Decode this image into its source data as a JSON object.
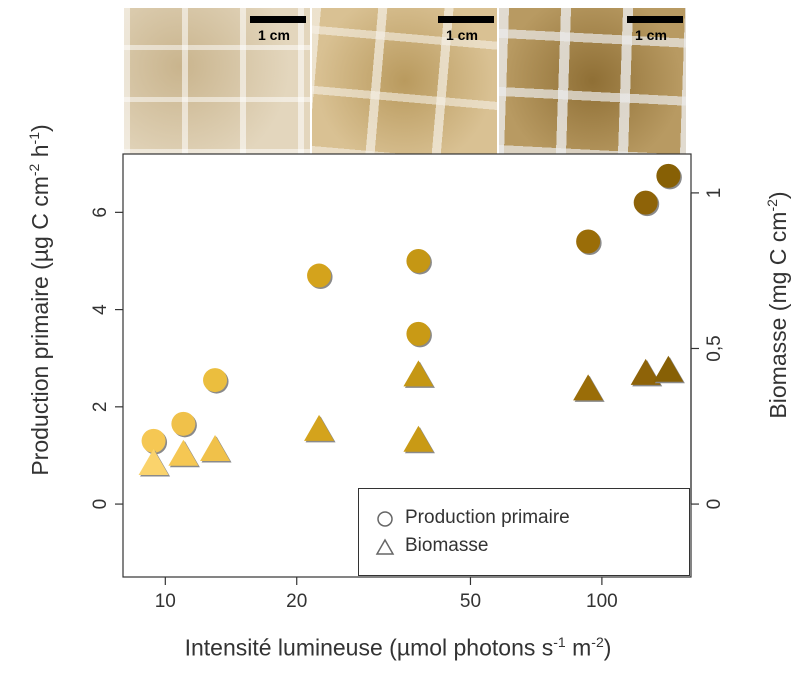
{
  "chart_data": {
    "type": "scatter",
    "xscale": "log",
    "xlabel_main": "Intensité lumineuse (µmol photons s",
    "xlabel_sup1": "-1",
    "xlabel_mid": " m",
    "xlabel_sup2": "-2",
    "xlabel_end": ")",
    "ylabel_main": "Production primaire (µg C cm",
    "ylabel_sup1": "-2",
    "ylabel_mid": " h",
    "ylabel_sup2": "-1",
    "ylabel_end": ")",
    "y2label_main": "Biomasse (mg C cm",
    "y2label_sup": "-2",
    "y2label_end": ")",
    "xticks": [
      10,
      20,
      50,
      100
    ],
    "xtick_labels": [
      "10",
      "20",
      "50",
      "100"
    ],
    "yticks": [
      0,
      2,
      4,
      6
    ],
    "ytick_labels": [
      "0",
      "2",
      "4",
      "6"
    ],
    "y2ticks": [
      0,
      0.5,
      1
    ],
    "y2tick_labels": [
      "0",
      "0,5",
      "1"
    ],
    "xlim": [
      8,
      160
    ],
    "ylim": [
      -1.5,
      7.2
    ],
    "y2lim": [
      0,
      1
    ],
    "series": [
      {
        "name": "Production primaire",
        "marker": "circle",
        "axis": "left",
        "x": [
          9.4,
          11,
          13,
          22.5,
          38,
          38,
          93,
          126,
          142
        ],
        "y": [
          1.3,
          1.65,
          2.55,
          4.7,
          3.5,
          5.0,
          5.4,
          6.2,
          6.75
        ],
        "colors": [
          "#f5c753",
          "#f0c14a",
          "#ebbe3e",
          "#d4a31c",
          "#c99a15",
          "#c59714",
          "#9a6d08",
          "#8e6308",
          "#876005"
        ]
      },
      {
        "name": "Biomasse",
        "marker": "triangle",
        "axis": "right",
        "x": [
          9.4,
          11,
          13,
          22.5,
          38,
          38,
          93,
          126,
          142
        ],
        "y": [
          0.135,
          0.165,
          0.18,
          0.245,
          0.21,
          0.42,
          0.375,
          0.425,
          0.435
        ],
        "colors": [
          "#fad36c",
          "#f5c753",
          "#f0c14a",
          "#d4a31c",
          "#c99a15",
          "#c59714",
          "#9a6d08",
          "#8e6308",
          "#876005"
        ]
      }
    ],
    "legend": {
      "position": "bottom-right",
      "entries": [
        "Production primaire",
        "Biomasse"
      ]
    },
    "grid": false
  },
  "photos": {
    "scale_labels": [
      "1 cm",
      "1 cm",
      "1 cm"
    ],
    "colors": [
      "#d8c7a6",
      "#c9ad78",
      "#b79b62"
    ]
  }
}
